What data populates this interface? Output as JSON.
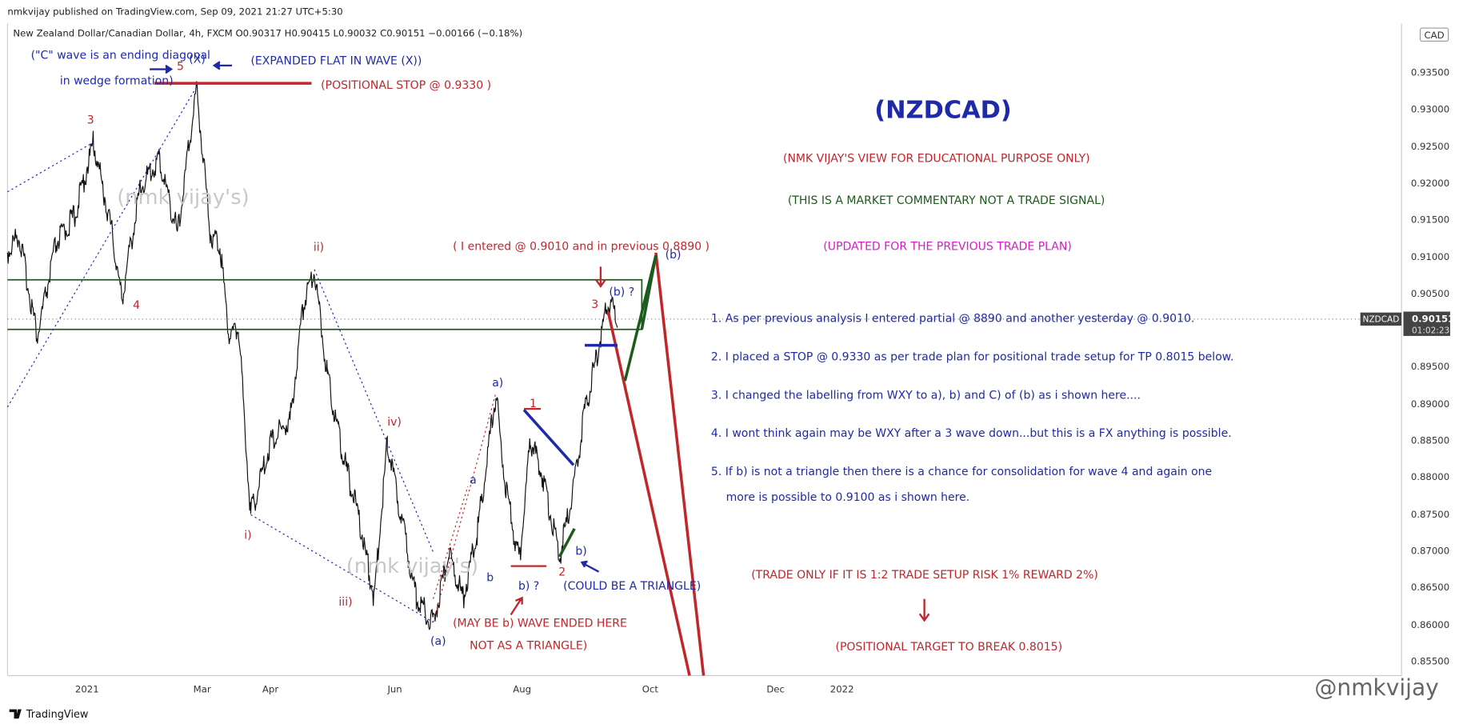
{
  "header": {
    "published": "nmkvijay published on TradingView.com, Sep 09, 2021 21:27 UTC+5:30",
    "symbol_line": "New Zealand Dollar/Canadian Dollar, 4h, FXCM  O0.90317 H0.90415 L0.90032 C0.90151 −0.00166 (−0.18%)"
  },
  "price_axis": {
    "currency": "CAD",
    "ticks": [
      "0.93500",
      "0.93000",
      "0.92500",
      "0.92000",
      "0.91500",
      "0.91000",
      "0.90500",
      "0.89500",
      "0.89000",
      "0.88500",
      "0.88000",
      "0.87500",
      "0.87000",
      "0.86500",
      "0.86000",
      "0.85500"
    ]
  },
  "price_label": {
    "symbol": "NZDCAD",
    "price": "0.90151",
    "countdown": "01:02:23"
  },
  "time_axis": {
    "labels": [
      "2021",
      "Mar",
      "Apr",
      "Jun",
      "Aug",
      "Oct",
      "Dec",
      "2022"
    ]
  },
  "annotations": [
    "(\"C\" wave is an ending diagonal",
    "in wedge formation)",
    "5",
    "(X)",
    "(EXPANDED FLAT IN WAVE (X))",
    "(POSITIONAL STOP @ 0.9330 )",
    "3",
    "4",
    "(nmk vijay's)",
    "ii)",
    "iv)",
    "i)",
    "iii)",
    "(a)",
    "( I entered @ 0.9010 and in previous 0.8890 )",
    "(b)",
    "3",
    "(b) ?",
    "a)",
    "a",
    "b",
    "1",
    "b) ?",
    "2",
    "b)",
    "(COULD BE A TRIANGLE)",
    "(MAY BE b) WAVE ENDED HERE",
    "NOT AS A TRIANGLE)",
    "(nmk vijay's)"
  ],
  "commentary": {
    "title": "(NZDCAD)",
    "disclaimer": "(NMK VIJAY'S VIEW FOR EDUCATIONAL PURPOSE ONLY)",
    "note": "(THIS IS A MARKET COMMENTARY NOT A TRADE SIGNAL)",
    "update": "(UPDATED FOR THE PREVIOUS TRADE PLAN)",
    "points": [
      "1. As per previous analysis I entered partial @ 8890 and another yesterday @ 0.9010.",
      "2. I placed a STOP @ 0.9330 as per trade plan for positional trade setup for TP 0.8015 below.",
      "3. I changed the labelling from WXY to a), b) and C) of (b) as i shown here....",
      "4. I wont think again may be WXY after a 3 wave down...but this is a FX anything is possible.",
      "5. If b) is not a triangle then there is a chance for consolidation for wave 4 and again one",
      "more is possible  to 0.9100 as i shown here."
    ],
    "risk": "(TRADE ONLY IF IT IS 1:2 TRADE SETUP RISK 1% REWARD 2%)",
    "target": "(POSITIONAL TARGET TO BREAK 0.8015)"
  },
  "footer": {
    "logo": "TradingView",
    "watermark": "@nmkvijay"
  }
}
